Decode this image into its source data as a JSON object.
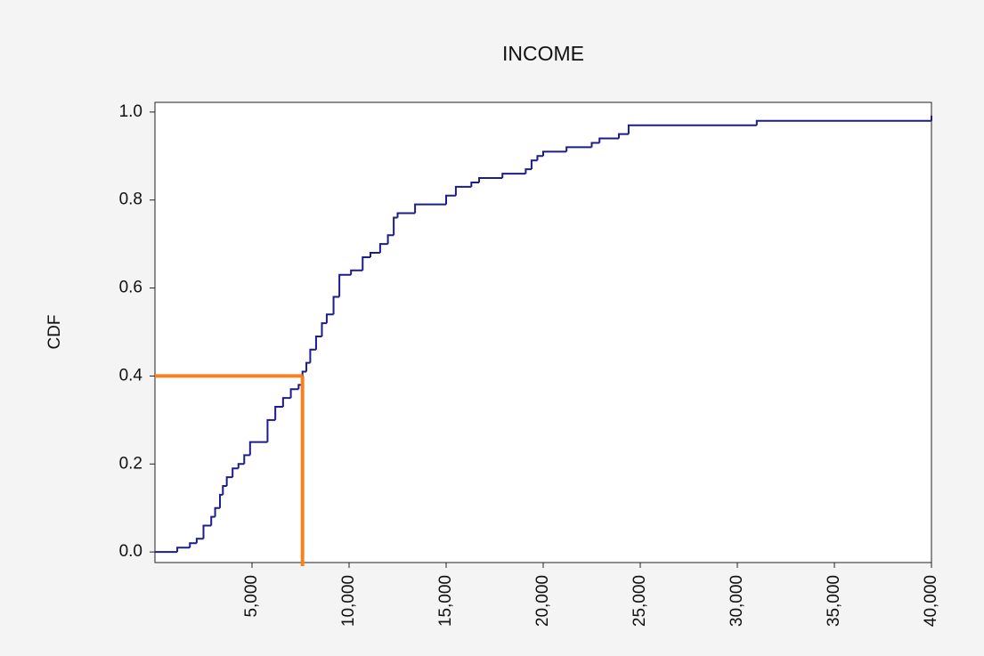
{
  "chart_data": {
    "type": "step",
    "title": "INCOME",
    "y_label": "CDF",
    "xlim": [
      0,
      40000
    ],
    "ylim": [
      -0.024,
      1.022
    ],
    "xticks": [
      {
        "value": 5000,
        "label": "5,000"
      },
      {
        "value": 10000,
        "label": "10,000"
      },
      {
        "value": 15000,
        "label": "15,000"
      },
      {
        "value": 20000,
        "label": "20,000"
      },
      {
        "value": 25000,
        "label": "25,000"
      },
      {
        "value": 30000,
        "label": "30,000"
      },
      {
        "value": 35000,
        "label": "35,000"
      },
      {
        "value": 40000,
        "label": "40,000"
      }
    ],
    "yticks": [
      {
        "value": 0,
        "label": "0.0"
      },
      0.2,
      0.4,
      0.6,
      0.8,
      {
        "value": 1,
        "label": "1.0"
      }
    ],
    "series": [
      {
        "color": "#1c1c8a",
        "x": [
          0,
          1150,
          1800,
          2150,
          2500,
          2900,
          3100,
          3350,
          3500,
          3700,
          4000,
          4300,
          4600,
          4900,
          5800,
          6200,
          6600,
          7000,
          7400,
          7600,
          7800,
          8000,
          8300,
          8600,
          8850,
          9200,
          9500,
          10100,
          10700,
          11100,
          11600,
          12000,
          12300,
          12500,
          13400,
          15000,
          15500,
          16300,
          16700,
          17900,
          19100,
          19400,
          19700,
          20000,
          21200,
          22500,
          22900,
          23900,
          24400,
          31000,
          40000
        ],
        "values": [
          0,
          0.01,
          0.02,
          0.03,
          0.06,
          0.08,
          0.1,
          0.13,
          0.15,
          0.17,
          0.19,
          0.2,
          0.22,
          0.25,
          0.3,
          0.33,
          0.35,
          0.37,
          0.38,
          0.41,
          0.43,
          0.46,
          0.49,
          0.52,
          0.54,
          0.58,
          0.63,
          0.64,
          0.67,
          0.68,
          0.7,
          0.72,
          0.76,
          0.77,
          0.79,
          0.81,
          0.83,
          0.84,
          0.85,
          0.86,
          0.87,
          0.89,
          0.9,
          0.91,
          0.92,
          0.93,
          0.94,
          0.95,
          0.97,
          0.98,
          0.99
        ]
      }
    ],
    "reference": {
      "x": 7600,
      "y": 0.4,
      "color": "#f5821f"
    }
  }
}
